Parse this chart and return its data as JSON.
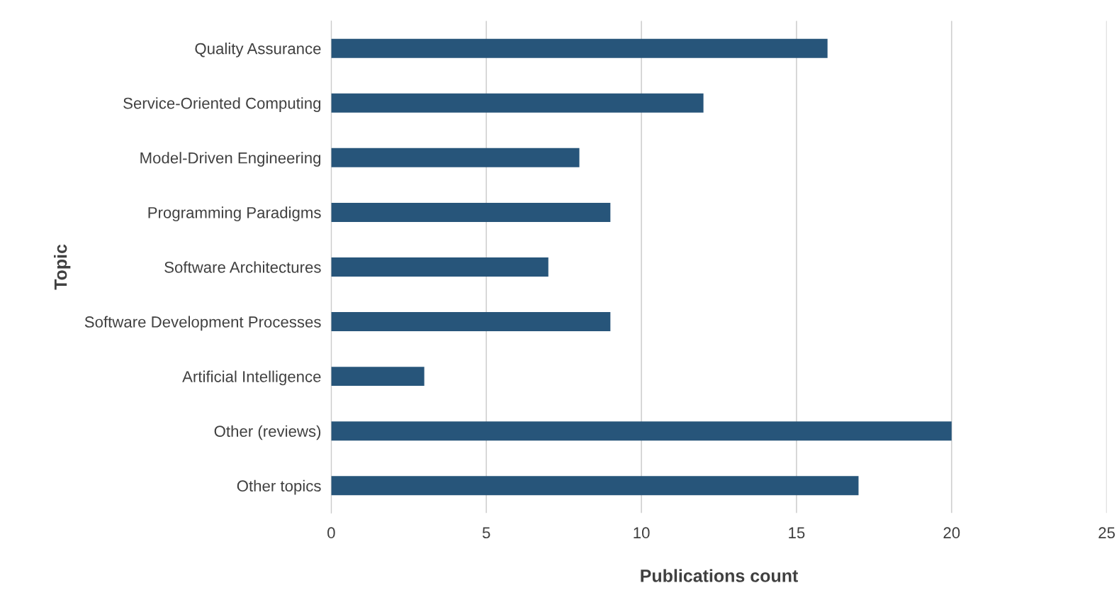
{
  "chart_data": {
    "type": "bar",
    "orientation": "horizontal",
    "xlabel": "Publications count",
    "ylabel": "Topic",
    "categories": [
      "Quality Assurance",
      "Service-Oriented Computing",
      "Model-Driven Engineering",
      "Programming Paradigms",
      "Software Architectures",
      "Software Development Processes",
      "Artificial Intelligence",
      "Other (reviews)",
      "Other topics"
    ],
    "values": [
      16,
      12,
      8,
      9,
      7,
      9,
      3,
      20,
      17
    ],
    "color": "#27557a",
    "xlim": [
      0,
      25
    ],
    "xticks": [
      0,
      5,
      10,
      15,
      20,
      25
    ],
    "grid": "x"
  }
}
